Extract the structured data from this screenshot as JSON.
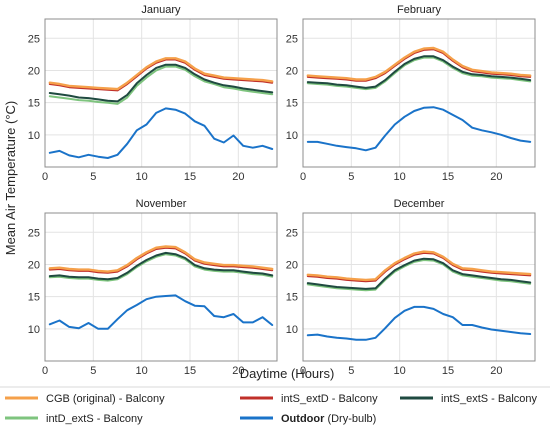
{
  "figure": {
    "ylabel": "Mean Air Temperature (°C)",
    "xlabel": "Daytime (Hours)"
  },
  "legend": {
    "items": [
      {
        "label": "CGB (original) - Balcony",
        "color": "#f5a04a",
        "bold": false
      },
      {
        "label": "intS_extD - Balcony",
        "color": "#c0302a",
        "bold": false
      },
      {
        "label": "intS_extS - Balcony",
        "color": "#1f4a40",
        "bold": false
      },
      {
        "label": "intD_extS - Balcony",
        "color": "#7ec47e",
        "bold": false
      },
      {
        "label": "Outdoor",
        "label_suffix": " (Dry-bulb)",
        "color": "#1a73c9",
        "bold": true
      }
    ]
  },
  "chart_data": [
    {
      "type": "line",
      "title": "January",
      "xlim": [
        0,
        24
      ],
      "ylim": [
        5,
        28
      ],
      "xticks": [
        0,
        5,
        10,
        15,
        20
      ],
      "yticks": [
        10,
        15,
        20,
        25
      ],
      "grid": true,
      "x": [
        0.5,
        1.5,
        2.5,
        3.5,
        4.5,
        5.5,
        6.5,
        7.5,
        8.5,
        9.5,
        10.5,
        11.5,
        12.5,
        13.5,
        14.5,
        15.5,
        16.5,
        17.5,
        18.5,
        19.5,
        20.5,
        21.5,
        22.5,
        23.5
      ],
      "series": [
        {
          "name": "Outdoor",
          "color": "#1a73c9",
          "values": [
            7.2,
            7.5,
            6.8,
            6.5,
            6.9,
            6.6,
            6.4,
            6.9,
            8.6,
            10.7,
            11.6,
            13.4,
            14.1,
            13.9,
            13.3,
            12.1,
            11.4,
            9.4,
            8.8,
            9.9,
            8.3,
            8.0,
            8.3,
            7.8
          ]
        },
        {
          "name": "intD_extS",
          "color": "#7ec47e",
          "values": [
            16.0,
            15.8,
            15.6,
            15.4,
            15.3,
            15.1,
            15.0,
            14.8,
            15.8,
            17.6,
            18.9,
            20.0,
            20.6,
            20.6,
            20.1,
            19.1,
            18.3,
            17.9,
            17.4,
            17.2,
            16.9,
            16.7,
            16.5,
            16.3
          ]
        },
        {
          "name": "intS_extS",
          "color": "#1f4a40",
          "values": [
            16.5,
            16.3,
            16.1,
            15.8,
            15.7,
            15.5,
            15.3,
            15.2,
            16.2,
            18.0,
            19.3,
            20.4,
            20.9,
            20.9,
            20.4,
            19.4,
            18.6,
            18.1,
            17.7,
            17.5,
            17.2,
            17.0,
            16.8,
            16.6
          ]
        },
        {
          "name": "intS_extD",
          "color": "#c0302a",
          "values": [
            17.9,
            17.7,
            17.4,
            17.3,
            17.2,
            17.1,
            17.0,
            16.9,
            17.9,
            19.1,
            20.3,
            21.2,
            21.7,
            21.7,
            21.2,
            20.1,
            19.3,
            19.0,
            18.7,
            18.6,
            18.5,
            18.4,
            18.3,
            18.1
          ]
        },
        {
          "name": "CGB (original)",
          "color": "#f5a04a",
          "values": [
            18.1,
            17.9,
            17.6,
            17.5,
            17.4,
            17.3,
            17.2,
            17.1,
            18.1,
            19.3,
            20.5,
            21.4,
            21.9,
            21.9,
            21.4,
            20.3,
            19.5,
            19.2,
            18.9,
            18.8,
            18.7,
            18.6,
            18.5,
            18.3
          ]
        }
      ]
    },
    {
      "type": "line",
      "title": "February",
      "xlim": [
        0,
        24
      ],
      "ylim": [
        5,
        28
      ],
      "xticks": [
        0,
        5,
        10,
        15,
        20
      ],
      "yticks": [
        10,
        15,
        20,
        25
      ],
      "grid": true,
      "x": [
        0.5,
        1.5,
        2.5,
        3.5,
        4.5,
        5.5,
        6.5,
        7.5,
        8.5,
        9.5,
        10.5,
        11.5,
        12.5,
        13.5,
        14.5,
        15.5,
        16.5,
        17.5,
        18.5,
        19.5,
        20.5,
        21.5,
        22.5,
        23.5
      ],
      "series": [
        {
          "name": "Outdoor",
          "color": "#1a73c9",
          "values": [
            8.9,
            8.9,
            8.6,
            8.3,
            8.1,
            7.9,
            7.6,
            8.0,
            9.9,
            11.6,
            12.8,
            13.7,
            14.2,
            14.3,
            13.9,
            13.1,
            12.3,
            11.1,
            10.7,
            10.4,
            10.0,
            9.5,
            9.1,
            8.9
          ]
        },
        {
          "name": "intD_extS",
          "color": "#7ec47e",
          "values": [
            18.0,
            17.9,
            17.8,
            17.6,
            17.5,
            17.3,
            17.1,
            17.3,
            18.3,
            19.6,
            20.8,
            21.6,
            22.0,
            22.0,
            21.4,
            20.4,
            19.6,
            19.2,
            19.1,
            18.9,
            18.8,
            18.7,
            18.5,
            18.3
          ]
        },
        {
          "name": "intS_extS",
          "color": "#1f4a40",
          "values": [
            18.2,
            18.1,
            18.0,
            17.8,
            17.7,
            17.5,
            17.3,
            17.5,
            18.5,
            19.8,
            21.0,
            21.8,
            22.2,
            22.2,
            21.6,
            20.6,
            19.8,
            19.4,
            19.3,
            19.1,
            19.0,
            18.9,
            18.7,
            18.5
          ]
        },
        {
          "name": "intS_extD",
          "color": "#c0302a",
          "values": [
            19.0,
            18.9,
            18.8,
            18.7,
            18.6,
            18.4,
            18.4,
            18.8,
            19.6,
            20.7,
            21.8,
            22.7,
            23.2,
            23.3,
            22.7,
            21.5,
            20.5,
            19.9,
            19.7,
            19.5,
            19.4,
            19.3,
            19.1,
            19.0
          ]
        },
        {
          "name": "CGB (original)",
          "color": "#f5a04a",
          "values": [
            19.2,
            19.1,
            19.0,
            18.9,
            18.8,
            18.6,
            18.6,
            19.0,
            19.8,
            20.9,
            22.0,
            22.9,
            23.4,
            23.5,
            22.9,
            21.7,
            20.7,
            20.1,
            19.9,
            19.7,
            19.6,
            19.5,
            19.3,
            19.2
          ]
        }
      ]
    },
    {
      "type": "line",
      "title": "November",
      "xlim": [
        0,
        24
      ],
      "ylim": [
        5,
        28
      ],
      "xticks": [
        0,
        5,
        10,
        15,
        20
      ],
      "yticks": [
        10,
        15,
        20,
        25
      ],
      "grid": true,
      "x": [
        0.5,
        1.5,
        2.5,
        3.5,
        4.5,
        5.5,
        6.5,
        7.5,
        8.5,
        9.5,
        10.5,
        11.5,
        12.5,
        13.5,
        14.5,
        15.5,
        16.5,
        17.5,
        18.5,
        19.5,
        20.5,
        21.5,
        22.5,
        23.5
      ],
      "series": [
        {
          "name": "Outdoor",
          "color": "#1a73c9",
          "values": [
            10.7,
            11.3,
            10.3,
            10.1,
            10.9,
            10.0,
            10.0,
            11.5,
            12.9,
            13.7,
            14.6,
            15.0,
            15.1,
            15.2,
            14.3,
            13.6,
            13.5,
            12.0,
            11.8,
            12.3,
            11.0,
            11.0,
            11.8,
            10.6
          ]
        },
        {
          "name": "intD_extS",
          "color": "#7ec47e",
          "values": [
            18.0,
            18.1,
            17.9,
            17.8,
            17.8,
            17.6,
            17.5,
            17.7,
            18.5,
            19.6,
            20.5,
            21.2,
            21.6,
            21.4,
            20.8,
            19.7,
            19.2,
            19.0,
            18.9,
            18.9,
            18.7,
            18.5,
            18.4,
            18.1
          ]
        },
        {
          "name": "intS_extS",
          "color": "#1f4a40",
          "values": [
            18.2,
            18.3,
            18.1,
            18.0,
            18.0,
            17.8,
            17.7,
            17.9,
            18.7,
            19.8,
            20.7,
            21.4,
            21.8,
            21.6,
            21.0,
            19.9,
            19.4,
            19.2,
            19.1,
            19.1,
            18.9,
            18.7,
            18.6,
            18.3
          ]
        },
        {
          "name": "intS_extD",
          "color": "#c0302a",
          "values": [
            19.2,
            19.3,
            19.1,
            19.0,
            19.0,
            18.8,
            18.7,
            18.9,
            19.7,
            20.8,
            21.7,
            22.4,
            22.6,
            22.5,
            21.7,
            20.6,
            20.1,
            19.9,
            19.7,
            19.7,
            19.6,
            19.5,
            19.3,
            19.1
          ]
        },
        {
          "name": "CGB (original)",
          "color": "#f5a04a",
          "values": [
            19.4,
            19.5,
            19.3,
            19.2,
            19.2,
            19.0,
            18.9,
            19.1,
            19.9,
            21.0,
            21.9,
            22.6,
            22.8,
            22.7,
            21.9,
            20.8,
            20.3,
            20.1,
            19.9,
            19.9,
            19.8,
            19.7,
            19.5,
            19.3
          ]
        }
      ]
    },
    {
      "type": "line",
      "title": "December",
      "xlim": [
        0,
        24
      ],
      "ylim": [
        5,
        28
      ],
      "xticks": [
        0,
        5,
        10,
        15,
        20
      ],
      "yticks": [
        10,
        15,
        20,
        25
      ],
      "grid": true,
      "x": [
        0.5,
        1.5,
        2.5,
        3.5,
        4.5,
        5.5,
        6.5,
        7.5,
        8.5,
        9.5,
        10.5,
        11.5,
        12.5,
        13.5,
        14.5,
        15.5,
        16.5,
        17.5,
        18.5,
        19.5,
        20.5,
        21.5,
        22.5,
        23.5
      ],
      "series": [
        {
          "name": "Outdoor",
          "color": "#1a73c9",
          "values": [
            9.0,
            9.1,
            8.8,
            8.6,
            8.5,
            8.3,
            8.3,
            8.6,
            10.1,
            11.7,
            12.8,
            13.4,
            13.4,
            13.1,
            12.3,
            11.8,
            10.6,
            10.6,
            10.2,
            9.9,
            9.7,
            9.5,
            9.3,
            9.2
          ]
        },
        {
          "name": "intD_extS",
          "color": "#7ec47e",
          "values": [
            16.9,
            16.7,
            16.5,
            16.3,
            16.2,
            16.1,
            16.0,
            16.1,
            17.6,
            18.9,
            19.7,
            20.4,
            20.7,
            20.6,
            20.0,
            18.9,
            18.3,
            18.1,
            17.9,
            17.7,
            17.5,
            17.4,
            17.2,
            17.0
          ]
        },
        {
          "name": "intS_extS",
          "color": "#1f4a40",
          "values": [
            17.1,
            16.9,
            16.7,
            16.5,
            16.4,
            16.3,
            16.2,
            16.3,
            17.8,
            19.1,
            19.9,
            20.6,
            20.9,
            20.8,
            20.2,
            19.1,
            18.5,
            18.3,
            18.1,
            17.9,
            17.7,
            17.6,
            17.4,
            17.2
          ]
        },
        {
          "name": "intS_extD",
          "color": "#c0302a",
          "values": [
            18.2,
            18.1,
            17.9,
            17.8,
            17.6,
            17.5,
            17.4,
            17.5,
            18.9,
            20.0,
            20.8,
            21.5,
            21.8,
            21.7,
            21.0,
            19.9,
            19.2,
            19.1,
            18.9,
            18.7,
            18.6,
            18.5,
            18.4,
            18.3
          ]
        },
        {
          "name": "CGB (original)",
          "color": "#f5a04a",
          "values": [
            18.4,
            18.3,
            18.1,
            18.0,
            17.8,
            17.7,
            17.6,
            17.7,
            19.1,
            20.2,
            21.0,
            21.7,
            22.0,
            21.9,
            21.2,
            20.1,
            19.4,
            19.3,
            19.1,
            18.9,
            18.8,
            18.7,
            18.6,
            18.5
          ]
        }
      ]
    }
  ]
}
